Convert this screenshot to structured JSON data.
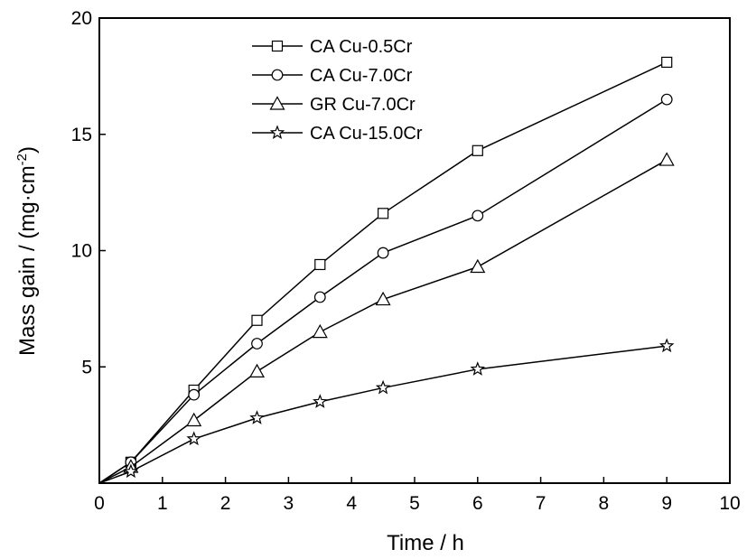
{
  "chart_data": {
    "type": "line",
    "title": "",
    "xlabel": "Time / h",
    "ylabel_main": "Mass gain / (mg·cm",
    "ylabel_sup": "-2",
    "ylabel_end": ")",
    "xlim": [
      0,
      10
    ],
    "ylim": [
      0,
      20
    ],
    "xticks": [
      0,
      1,
      2,
      3,
      4,
      5,
      6,
      7,
      8,
      9,
      10
    ],
    "yticks": [
      5,
      10,
      15,
      20
    ],
    "legend_position": "top-center",
    "grid": false,
    "series": [
      {
        "name": "CA Cu-0.5Cr",
        "marker": "square",
        "x": [
          0,
          0.5,
          1.5,
          2.5,
          3.5,
          4.5,
          6,
          9
        ],
        "y": [
          0,
          0.9,
          4.0,
          7.0,
          9.4,
          11.6,
          14.3,
          18.1
        ]
      },
      {
        "name": "CA Cu-7.0Cr",
        "marker": "circle",
        "x": [
          0,
          0.5,
          1.5,
          2.5,
          3.5,
          4.5,
          6,
          9
        ],
        "y": [
          0,
          0.9,
          3.8,
          6.0,
          8.0,
          9.9,
          11.5,
          16.5
        ]
      },
      {
        "name": "GR Cu-7.0Cr",
        "marker": "triangle",
        "x": [
          0,
          0.5,
          1.5,
          2.5,
          3.5,
          4.5,
          6,
          9
        ],
        "y": [
          0,
          0.7,
          2.7,
          4.8,
          6.5,
          7.9,
          9.3,
          13.9
        ]
      },
      {
        "name": "CA Cu-15.0Cr",
        "marker": "star",
        "x": [
          0,
          0.5,
          1.5,
          2.5,
          3.5,
          4.5,
          6,
          9
        ],
        "y": [
          0,
          0.5,
          1.9,
          2.8,
          3.5,
          4.1,
          4.9,
          5.9
        ]
      }
    ]
  }
}
